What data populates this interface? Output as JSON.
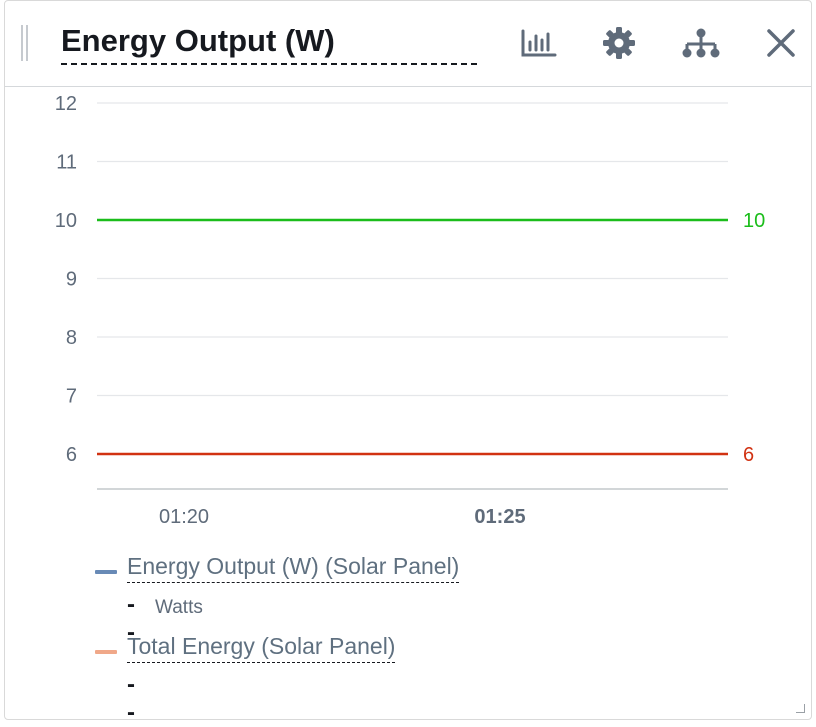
{
  "widget": {
    "title": "Energy Output (W)",
    "icons": [
      "bar-chart-icon",
      "gear-icon",
      "hierarchy-icon",
      "close-icon"
    ]
  },
  "chart_data": {
    "type": "line",
    "title": "",
    "xlabel": "",
    "ylabel": "",
    "ylim": [
      5.4,
      12
    ],
    "y_ticks": [
      12,
      11,
      10,
      9,
      8,
      7,
      6
    ],
    "x_ticks": [
      {
        "label": "01:20",
        "bold": false
      },
      {
        "label": "01:25",
        "bold": true
      }
    ],
    "grid": true,
    "thresholds": [
      {
        "value": 10,
        "label": "10",
        "color": "#1bbd1b"
      },
      {
        "value": 6,
        "label": "6",
        "color": "#d13212"
      }
    ],
    "series": [
      {
        "name": "Energy Output (W) (Solar Panel)",
        "color": "#688ab6",
        "values": []
      },
      {
        "name": "Total Energy (Solar Panel)",
        "color": "#f0a889",
        "values": []
      }
    ]
  },
  "legend": {
    "items": [
      {
        "name": "Energy Output (W) (Solar Panel)",
        "color": "#688ab6",
        "value": "--",
        "unit": "Watts"
      },
      {
        "name": "Total Energy (Solar Panel)",
        "color": "#f0a889",
        "value": "--",
        "unit": ""
      }
    ]
  }
}
